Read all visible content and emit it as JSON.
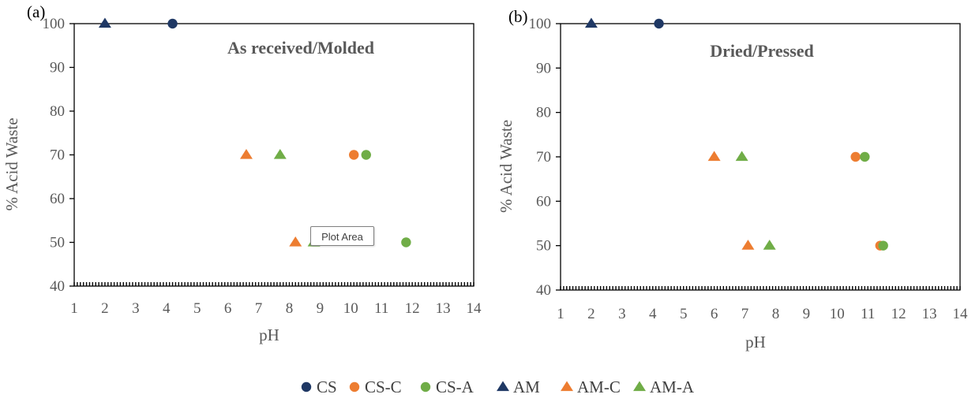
{
  "colors": {
    "CS": "#1f3864",
    "CS-C": "#ed7d31",
    "CS-A": "#70ad47",
    "AM": "#1f3864",
    "AM-C": "#ed7d31",
    "AM-A": "#70ad47",
    "axis": "#000000",
    "text": "#595959"
  },
  "tooltip": "Plot Area",
  "legend": [
    {
      "name": "CS",
      "marker": "circle",
      "color": "#1f3864"
    },
    {
      "name": "CS-C",
      "marker": "circle",
      "color": "#ed7d31"
    },
    {
      "name": "CS-A",
      "marker": "circle",
      "color": "#70ad47"
    },
    {
      "name": "AM",
      "marker": "triangle",
      "color": "#1f3864"
    },
    {
      "name": "AM-C",
      "marker": "triangle",
      "color": "#ed7d31"
    },
    {
      "name": "AM-A",
      "marker": "triangle",
      "color": "#70ad47"
    }
  ],
  "chart_data": [
    {
      "type": "scatter",
      "panel_label": "(a)",
      "title": "As received/Molded",
      "xlabel": "pH",
      "ylabel": "% Acid Waste",
      "xlim": [
        1,
        14
      ],
      "ylim": [
        40,
        100
      ],
      "xticks": [
        1,
        2,
        3,
        4,
        5,
        6,
        7,
        8,
        9,
        10,
        11,
        12,
        13,
        14
      ],
      "yticks": [
        40,
        50,
        60,
        70,
        80,
        90,
        100
      ],
      "grid": false,
      "legend_position": "bottom",
      "series": [
        {
          "name": "CS",
          "marker": "circle",
          "points": [
            [
              4.2,
              100
            ]
          ]
        },
        {
          "name": "CS-C",
          "marker": "circle",
          "points": [
            [
              10.1,
              70
            ]
          ]
        },
        {
          "name": "CS-A",
          "marker": "circle",
          "points": [
            [
              10.5,
              70
            ],
            [
              11.8,
              50
            ]
          ]
        },
        {
          "name": "AM",
          "marker": "triangle",
          "points": [
            [
              2.0,
              100
            ]
          ]
        },
        {
          "name": "AM-C",
          "marker": "triangle",
          "points": [
            [
              6.6,
              70
            ],
            [
              8.2,
              50
            ]
          ]
        },
        {
          "name": "AM-A",
          "marker": "triangle",
          "points": [
            [
              7.7,
              70
            ],
            [
              8.8,
              50
            ]
          ]
        }
      ]
    },
    {
      "type": "scatter",
      "panel_label": "(b)",
      "title": "Dried/Pressed",
      "xlabel": "pH",
      "ylabel": "% Acid Waste",
      "xlim": [
        1,
        14
      ],
      "ylim": [
        40,
        100
      ],
      "xticks": [
        1,
        2,
        3,
        4,
        5,
        6,
        7,
        8,
        9,
        10,
        11,
        12,
        13,
        14
      ],
      "yticks": [
        40,
        50,
        60,
        70,
        80,
        90,
        100
      ],
      "grid": false,
      "legend_position": "bottom",
      "series": [
        {
          "name": "CS",
          "marker": "circle",
          "points": [
            [
              4.2,
              100
            ]
          ]
        },
        {
          "name": "CS-C",
          "marker": "circle",
          "points": [
            [
              10.6,
              70
            ],
            [
              11.4,
              50
            ]
          ]
        },
        {
          "name": "CS-A",
          "marker": "circle",
          "points": [
            [
              10.9,
              70
            ],
            [
              11.5,
              50
            ]
          ]
        },
        {
          "name": "AM",
          "marker": "triangle",
          "points": [
            [
              2.0,
              100
            ]
          ]
        },
        {
          "name": "AM-C",
          "marker": "triangle",
          "points": [
            [
              6.0,
              70
            ],
            [
              7.1,
              50
            ]
          ]
        },
        {
          "name": "AM-A",
          "marker": "triangle",
          "points": [
            [
              6.9,
              70
            ],
            [
              7.8,
              50
            ]
          ]
        }
      ]
    }
  ]
}
